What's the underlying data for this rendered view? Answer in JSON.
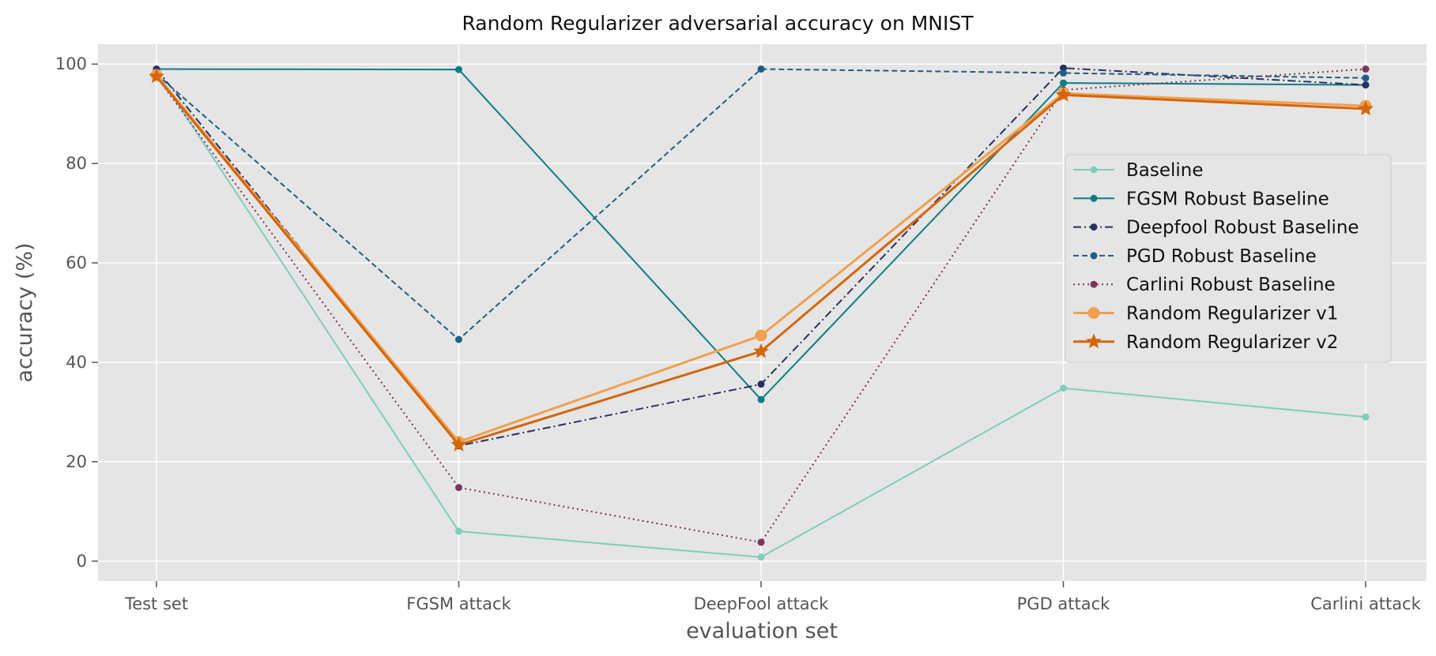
{
  "chart_data": {
    "type": "line",
    "title": "Random Regularizer adversarial accuracy on MNIST",
    "xlabel": "evaluation set",
    "ylabel": "accuracy (%)",
    "categories": [
      "Test set",
      "FGSM attack",
      "DeepFool attack",
      "PGD attack",
      "Carlini attack"
    ],
    "ylim": [
      -4,
      104
    ],
    "yticks": [
      0,
      20,
      40,
      60,
      80,
      100
    ],
    "grid": true,
    "legend_position": "center-right",
    "series": [
      {
        "name": "Baseline",
        "values": [
          98.5,
          6,
          0.8,
          34.8,
          29
        ],
        "color": "#7fcdbb",
        "dash": "solid",
        "marker": "circle",
        "width": 2
      },
      {
        "name": "FGSM Robust Baseline",
        "values": [
          99,
          98.9,
          32.5,
          96.2,
          95.8
        ],
        "color": "#0e7c86",
        "dash": "solid",
        "marker": "circle",
        "width": 2
      },
      {
        "name": "Deepfool Robust Baseline",
        "values": [
          99,
          23.2,
          35.6,
          99.2,
          95.8
        ],
        "color": "#2a3061",
        "dash": "dashdot",
        "marker": "circle",
        "width": 2
      },
      {
        "name": "PGD Robust Baseline",
        "values": [
          98,
          44.6,
          99,
          98.2,
          97.2
        ],
        "color": "#1f5f80",
        "dash": "dashed",
        "marker": "circle",
        "width": 2
      },
      {
        "name": "Carlini Robust Baseline",
        "values": [
          97.5,
          14.8,
          3.8,
          94.8,
          99
        ],
        "color": "#7d3558",
        "dash": "dotted",
        "marker": "circle",
        "width": 2
      },
      {
        "name": "Random Regularizer v1",
        "values": [
          97.8,
          24,
          45.4,
          94.1,
          91.6
        ],
        "color": "#f0a050",
        "dash": "solid",
        "marker": "circle-large",
        "width": 3
      },
      {
        "name": "Random Regularizer v2",
        "values": [
          97.5,
          23.4,
          42.2,
          93.8,
          91
        ],
        "color": "#d4660c",
        "dash": "solid",
        "marker": "star",
        "width": 3
      }
    ]
  }
}
